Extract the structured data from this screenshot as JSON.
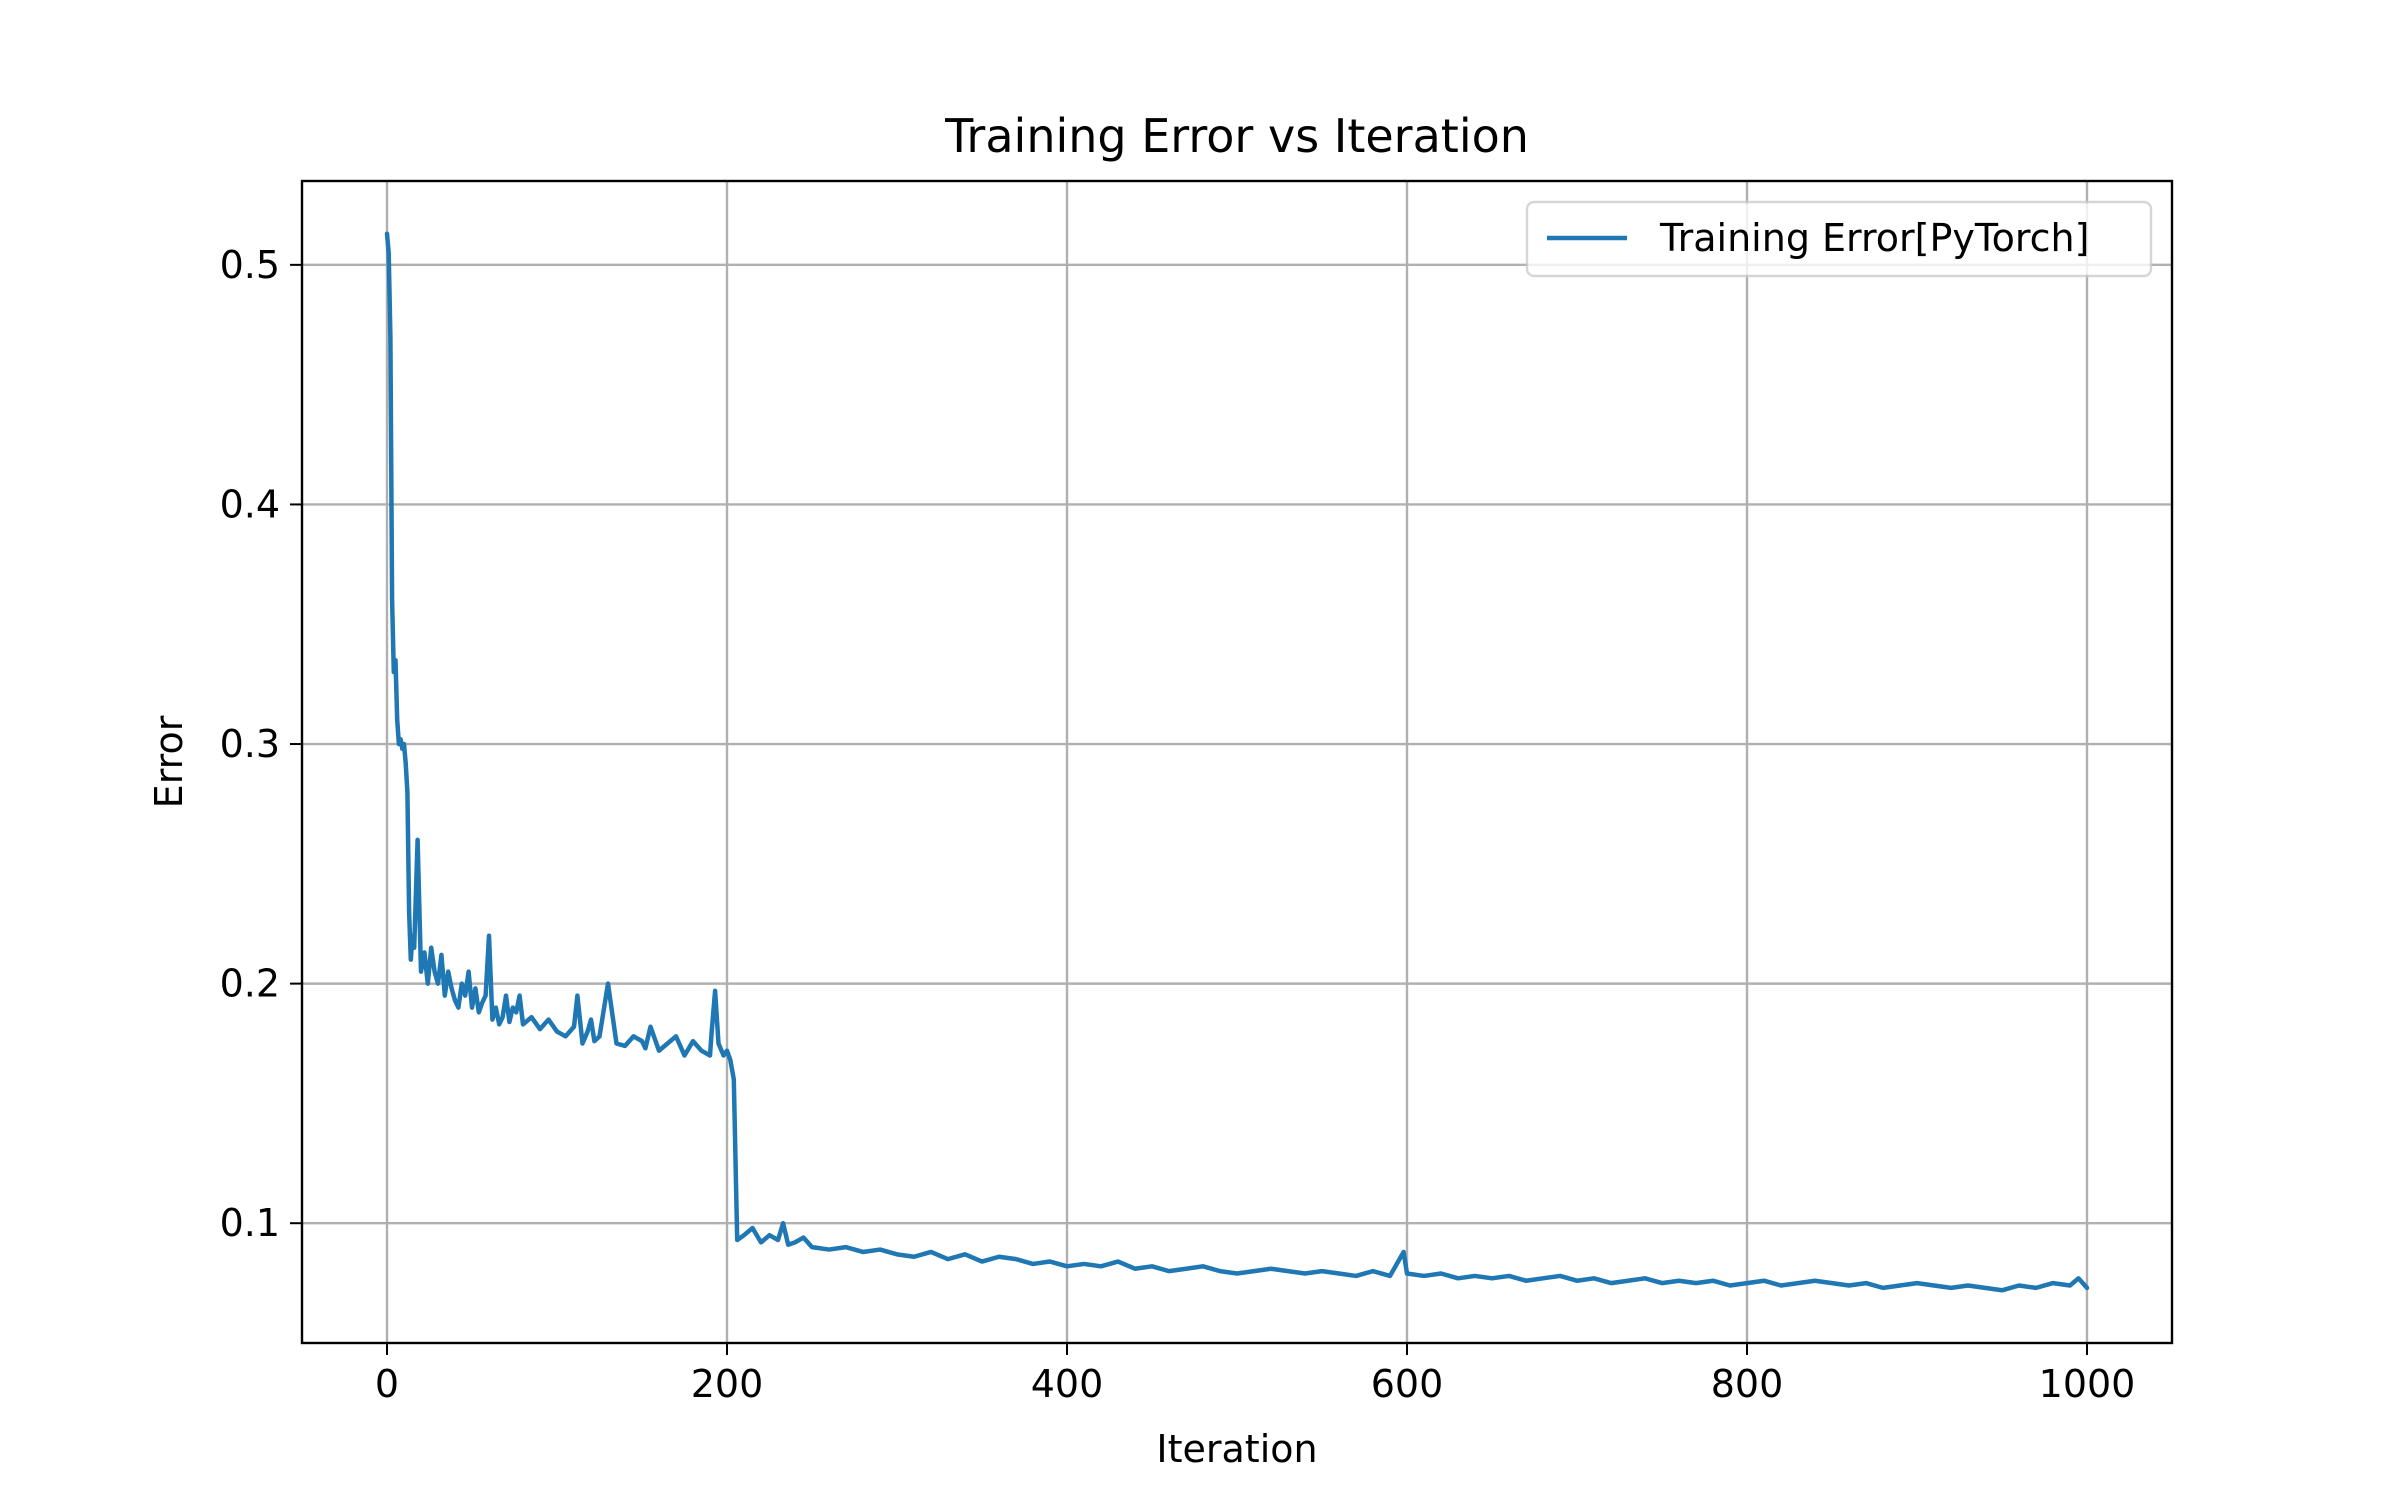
{
  "chart_data": {
    "type": "line",
    "title": "Training Error vs Iteration",
    "xlabel": "Iteration",
    "ylabel": "Error",
    "xlim": [
      -50,
      1050
    ],
    "ylim": [
      0.05,
      0.535
    ],
    "xticks": [
      0,
      200,
      400,
      600,
      800,
      1000
    ],
    "yticks": [
      0.1,
      0.2,
      0.3,
      0.4,
      0.5
    ],
    "xtick_labels": [
      "0",
      "200",
      "400",
      "600",
      "800",
      "1000"
    ],
    "ytick_labels": [
      "0.1",
      "0.2",
      "0.3",
      "0.4",
      "0.5"
    ],
    "grid": true,
    "legend_position": "top-right",
    "series": [
      {
        "name": "Training Error[PyTorch]",
        "color": "#1f77b4",
        "x": [
          0,
          1,
          2,
          3,
          4,
          5,
          6,
          7,
          8,
          9,
          10,
          11,
          12,
          13,
          14,
          15,
          16,
          18,
          20,
          22,
          24,
          26,
          28,
          30,
          32,
          34,
          36,
          38,
          40,
          42,
          44,
          46,
          48,
          50,
          52,
          54,
          56,
          58,
          60,
          62,
          64,
          66,
          68,
          70,
          72,
          74,
          76,
          78,
          80,
          85,
          90,
          95,
          100,
          105,
          110,
          112,
          115,
          118,
          120,
          122,
          125,
          130,
          135,
          140,
          145,
          150,
          152,
          155,
          160,
          165,
          170,
          175,
          180,
          185,
          190,
          191,
          193,
          195,
          198,
          200,
          202,
          204,
          206,
          210,
          215,
          220,
          225,
          230,
          233,
          236,
          240,
          245,
          250,
          260,
          270,
          280,
          290,
          300,
          310,
          320,
          330,
          340,
          350,
          360,
          370,
          380,
          390,
          400,
          410,
          420,
          430,
          440,
          450,
          460,
          470,
          480,
          490,
          500,
          510,
          520,
          530,
          540,
          550,
          560,
          570,
          580,
          590,
          598,
          600,
          610,
          620,
          630,
          640,
          650,
          660,
          670,
          680,
          690,
          700,
          710,
          720,
          730,
          740,
          750,
          760,
          770,
          780,
          790,
          800,
          810,
          820,
          830,
          840,
          850,
          860,
          870,
          880,
          890,
          900,
          910,
          920,
          930,
          940,
          950,
          960,
          970,
          980,
          990,
          995,
          1000
        ],
        "y": [
          0.513,
          0.505,
          0.47,
          0.36,
          0.33,
          0.335,
          0.31,
          0.3,
          0.302,
          0.298,
          0.3,
          0.292,
          0.28,
          0.23,
          0.21,
          0.22,
          0.215,
          0.26,
          0.205,
          0.213,
          0.2,
          0.215,
          0.205,
          0.2,
          0.212,
          0.195,
          0.205,
          0.198,
          0.193,
          0.19,
          0.2,
          0.195,
          0.205,
          0.19,
          0.198,
          0.188,
          0.192,
          0.195,
          0.22,
          0.185,
          0.19,
          0.183,
          0.186,
          0.195,
          0.184,
          0.19,
          0.188,
          0.195,
          0.183,
          0.186,
          0.181,
          0.185,
          0.18,
          0.178,
          0.182,
          0.195,
          0.175,
          0.18,
          0.185,
          0.176,
          0.178,
          0.2,
          0.175,
          0.174,
          0.178,
          0.176,
          0.173,
          0.182,
          0.172,
          0.175,
          0.178,
          0.17,
          0.176,
          0.172,
          0.17,
          0.18,
          0.197,
          0.175,
          0.17,
          0.172,
          0.168,
          0.16,
          0.093,
          0.095,
          0.098,
          0.092,
          0.095,
          0.093,
          0.1,
          0.091,
          0.092,
          0.094,
          0.09,
          0.089,
          0.09,
          0.088,
          0.089,
          0.087,
          0.086,
          0.088,
          0.085,
          0.087,
          0.084,
          0.086,
          0.085,
          0.083,
          0.084,
          0.082,
          0.083,
          0.082,
          0.084,
          0.081,
          0.082,
          0.08,
          0.081,
          0.082,
          0.08,
          0.079,
          0.08,
          0.081,
          0.08,
          0.079,
          0.08,
          0.079,
          0.078,
          0.08,
          0.078,
          0.088,
          0.079,
          0.078,
          0.079,
          0.077,
          0.078,
          0.077,
          0.078,
          0.076,
          0.077,
          0.078,
          0.076,
          0.077,
          0.075,
          0.076,
          0.077,
          0.075,
          0.076,
          0.075,
          0.076,
          0.074,
          0.075,
          0.076,
          0.074,
          0.075,
          0.076,
          0.075,
          0.074,
          0.075,
          0.073,
          0.074,
          0.075,
          0.074,
          0.073,
          0.074,
          0.073,
          0.072,
          0.074,
          0.073,
          0.075,
          0.074,
          0.077,
          0.073
        ]
      }
    ]
  }
}
